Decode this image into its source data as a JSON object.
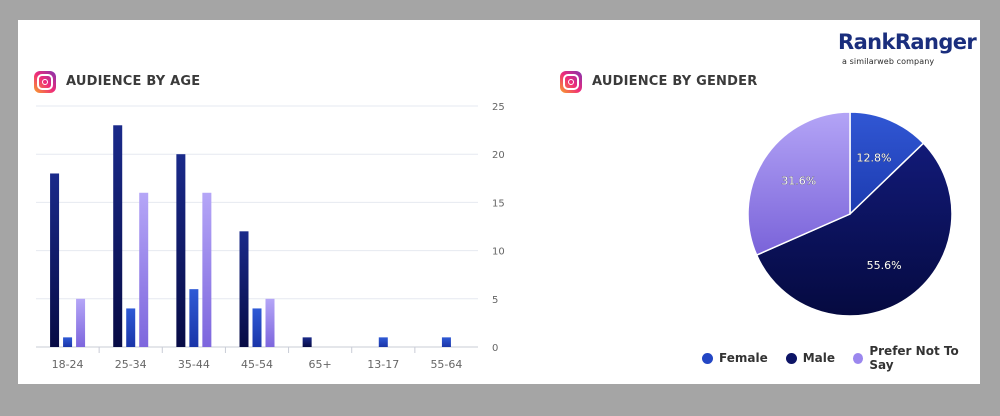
{
  "logo": {
    "main": "RankRanger",
    "sub": "a similarweb company"
  },
  "age_panel": {
    "title": "AUDIENCE BY AGE",
    "icon": "instagram-icon"
  },
  "gender_panel": {
    "title": "AUDIENCE BY GENDER",
    "icon": "instagram-icon"
  },
  "colors": {
    "male": "#0d1466",
    "female": "#2346c4",
    "prefer_not": "#9b87ee",
    "grid": "#e6e9f0",
    "axis_text": "#666666"
  },
  "chart_data": [
    {
      "type": "bar",
      "title": "AUDIENCE BY AGE",
      "categories": [
        "18-24",
        "25-34",
        "35-44",
        "45-54",
        "65+",
        "13-17",
        "55-64"
      ],
      "series": [
        {
          "name": "Male",
          "values": [
            18,
            23,
            20,
            12,
            1,
            0,
            0
          ]
        },
        {
          "name": "Female",
          "values": [
            1,
            4,
            6,
            4,
            0,
            1,
            1
          ]
        },
        {
          "name": "Prefer Not To Say",
          "values": [
            5,
            16,
            16,
            5,
            0,
            0,
            0
          ]
        }
      ],
      "yticks": [
        0,
        5,
        10,
        15,
        20,
        25
      ],
      "ylim": [
        0,
        25
      ],
      "grid": true
    },
    {
      "type": "pie",
      "title": "AUDIENCE BY GENDER",
      "slices": [
        {
          "name": "Female",
          "value": 12.8,
          "label": "12.8%"
        },
        {
          "name": "Male",
          "value": 55.6,
          "label": "55.6%"
        },
        {
          "name": "Prefer Not To Say",
          "value": 31.6,
          "label": "31.6%"
        }
      ],
      "legend": [
        "Female",
        "Male",
        "Prefer Not To Say"
      ],
      "legend_position": "bottom"
    }
  ]
}
